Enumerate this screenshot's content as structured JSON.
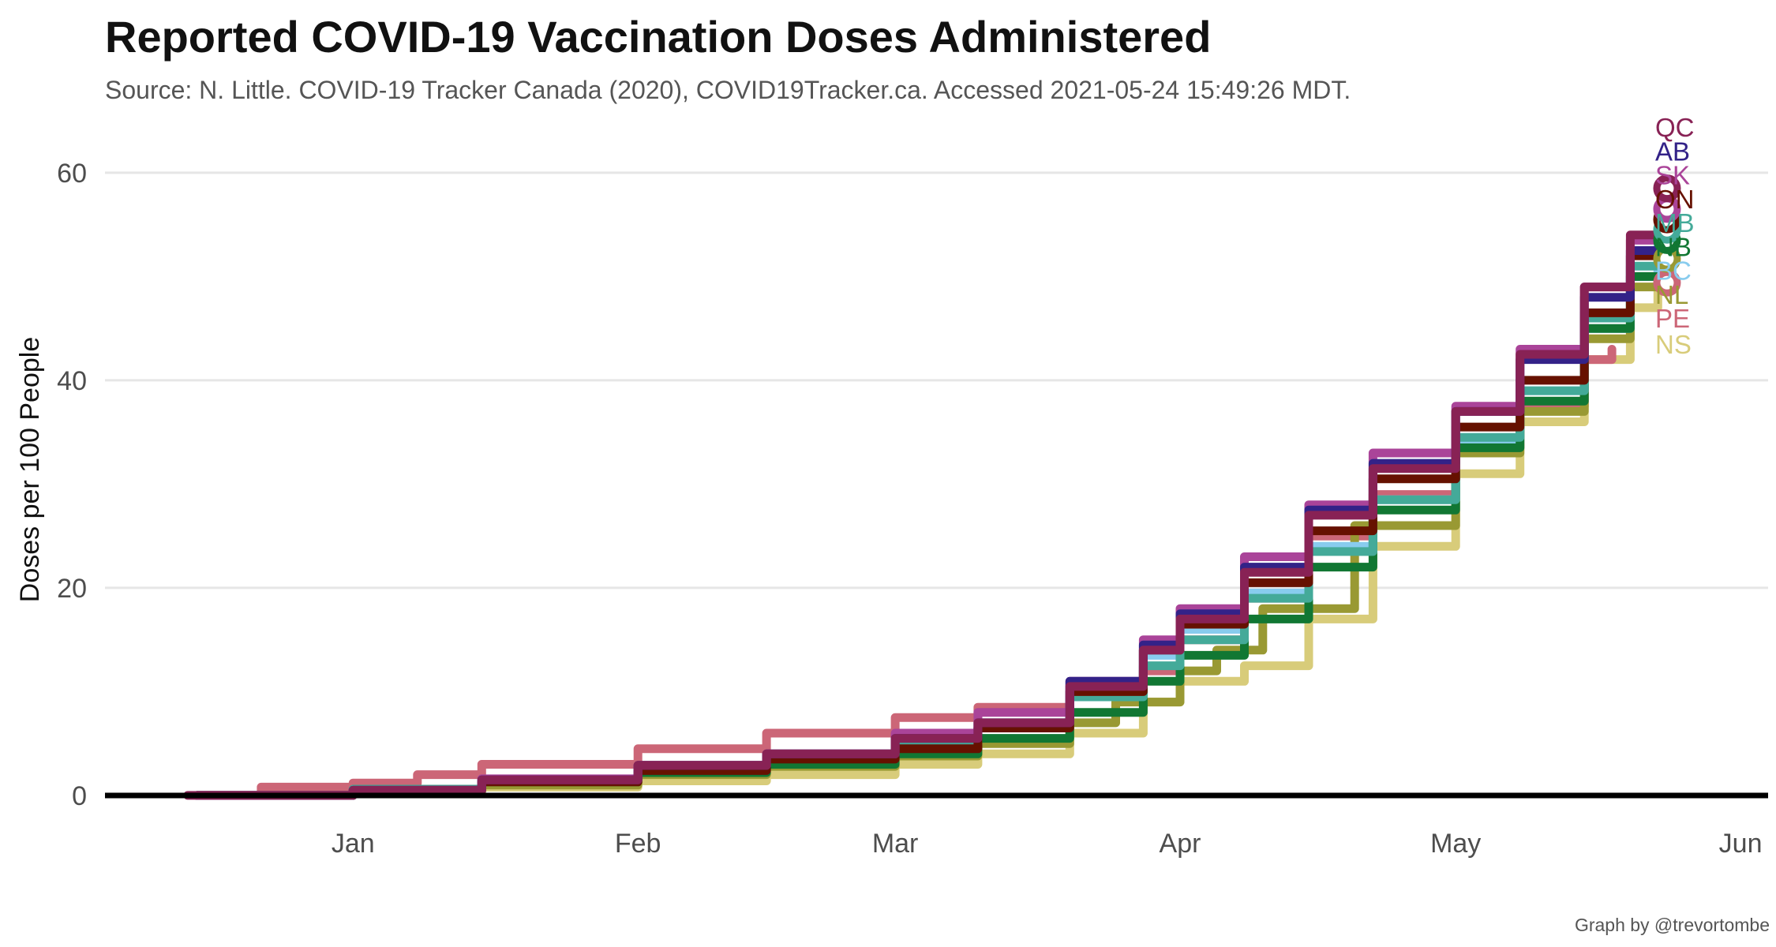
{
  "chart_data": {
    "type": "line",
    "title": "Reported COVID-19 Vaccination Doses Administered",
    "subtitle": "Source: N. Little. COVID-19 Tracker Canada (2020), COVID19Tracker.ca. Accessed 2021-05-24 15:49:26 MDT.",
    "caption": "Graph by @trevortombe",
    "ylabel": "Doses per 100 People",
    "xlabel": "",
    "x_range": [
      "2020-12-05",
      "2021-06-04"
    ],
    "ylim": [
      -7,
      66
    ],
    "y_ticks": [
      0,
      20,
      40,
      60
    ],
    "y_tick_labels": [
      "0",
      "20",
      "40",
      "60"
    ],
    "x_ticks": [
      "2021-01-01",
      "2021-02-01",
      "2021-03-01",
      "2021-04-01",
      "2021-05-01",
      "2021-06-01"
    ],
    "x_tick_labels": [
      "Jan",
      "Feb",
      "Mar",
      "Apr",
      "May",
      "Jun"
    ],
    "grid": "horizontal",
    "legend": "none",
    "zero_line": true,
    "series": [
      {
        "name": "NS",
        "color": "#D8CC7A",
        "end_label_value": 43.5,
        "points": [
          [
            "2020-12-15",
            0
          ],
          [
            "2021-01-01",
            0.4
          ],
          [
            "2021-01-15",
            0.8
          ],
          [
            "2021-02-01",
            1.4
          ],
          [
            "2021-02-15",
            2.0
          ],
          [
            "2021-03-01",
            3.0
          ],
          [
            "2021-03-10",
            4.0
          ],
          [
            "2021-03-20",
            6.0
          ],
          [
            "2021-03-28",
            9.0
          ],
          [
            "2021-04-01",
            11.0
          ],
          [
            "2021-04-08",
            12.5
          ],
          [
            "2021-04-15",
            17.0
          ],
          [
            "2021-04-22",
            24.0
          ],
          [
            "2021-05-01",
            31.0
          ],
          [
            "2021-05-08",
            36.0
          ],
          [
            "2021-05-15",
            42.0
          ],
          [
            "2021-05-20",
            47.0
          ],
          [
            "2021-05-23",
            50.0
          ]
        ],
        "end_point": null
      },
      {
        "name": "PE",
        "color": "#CC6677",
        "end_label_value": 46.0,
        "points": [
          [
            "2020-12-16",
            0
          ],
          [
            "2020-12-22",
            0.8
          ],
          [
            "2021-01-01",
            1.2
          ],
          [
            "2021-01-08",
            2.0
          ],
          [
            "2021-01-15",
            3.0
          ],
          [
            "2021-02-01",
            4.5
          ],
          [
            "2021-02-15",
            6.0
          ],
          [
            "2021-03-01",
            7.5
          ],
          [
            "2021-03-10",
            8.5
          ],
          [
            "2021-03-20",
            10.0
          ],
          [
            "2021-03-28",
            12.0
          ],
          [
            "2021-04-01",
            15.0
          ],
          [
            "2021-04-08",
            19.0
          ],
          [
            "2021-04-15",
            25.0
          ],
          [
            "2021-04-22",
            29.0
          ],
          [
            "2021-05-01",
            33.5
          ],
          [
            "2021-05-08",
            37.5
          ],
          [
            "2021-05-15",
            42.0
          ],
          [
            "2021-05-18",
            43.0
          ]
        ],
        "end_point": [
          "2021-05-24",
          49.4
        ]
      },
      {
        "name": "NL",
        "color": "#999933",
        "end_label_value": 48.3,
        "points": [
          [
            "2020-12-16",
            0
          ],
          [
            "2021-01-01",
            0.4
          ],
          [
            "2021-01-15",
            1.0
          ],
          [
            "2021-02-01",
            2.0
          ],
          [
            "2021-02-15",
            2.8
          ],
          [
            "2021-03-01",
            3.8
          ],
          [
            "2021-03-10",
            5.0
          ],
          [
            "2021-03-20",
            7.0
          ],
          [
            "2021-03-25",
            9.0
          ],
          [
            "2021-04-01",
            12.0
          ],
          [
            "2021-04-05",
            14.0
          ],
          [
            "2021-04-10",
            18.0
          ],
          [
            "2021-04-20",
            26.0
          ],
          [
            "2021-05-01",
            33.0
          ],
          [
            "2021-05-08",
            37.0
          ],
          [
            "2021-05-15",
            44.0
          ],
          [
            "2021-05-20",
            49.0
          ],
          [
            "2021-05-24",
            51.7
          ]
        ],
        "end_point": [
          "2021-05-24",
          51.7
        ]
      },
      {
        "name": "BC",
        "color": "#88CCEE",
        "end_label_value": 50.6,
        "points": [
          [
            "2020-12-15",
            0
          ],
          [
            "2021-01-01",
            0.6
          ],
          [
            "2021-01-15",
            1.5
          ],
          [
            "2021-02-01",
            2.7
          ],
          [
            "2021-02-15",
            3.6
          ],
          [
            "2021-03-01",
            5.5
          ],
          [
            "2021-03-10",
            7.0
          ],
          [
            "2021-03-20",
            10.0
          ],
          [
            "2021-03-28",
            13.5
          ],
          [
            "2021-04-01",
            16.0
          ],
          [
            "2021-04-08",
            19.5
          ],
          [
            "2021-04-15",
            24.0
          ],
          [
            "2021-04-22",
            28.5
          ],
          [
            "2021-05-01",
            34.0
          ],
          [
            "2021-05-08",
            39.0
          ],
          [
            "2021-05-15",
            45.0
          ],
          [
            "2021-05-20",
            50.0
          ],
          [
            "2021-05-23",
            53.0
          ]
        ],
        "end_point": null
      },
      {
        "name": "NB",
        "color": "#117733",
        "end_label_value": 52.9,
        "points": [
          [
            "2020-12-15",
            0
          ],
          [
            "2021-01-01",
            0.6
          ],
          [
            "2021-01-15",
            1.3
          ],
          [
            "2021-02-01",
            2.2
          ],
          [
            "2021-02-15",
            3.0
          ],
          [
            "2021-03-01",
            4.0
          ],
          [
            "2021-03-10",
            5.5
          ],
          [
            "2021-03-20",
            8.0
          ],
          [
            "2021-03-28",
            11.0
          ],
          [
            "2021-04-01",
            13.5
          ],
          [
            "2021-04-08",
            17.0
          ],
          [
            "2021-04-15",
            22.0
          ],
          [
            "2021-04-22",
            27.5
          ],
          [
            "2021-05-01",
            33.5
          ],
          [
            "2021-05-08",
            38.0
          ],
          [
            "2021-05-15",
            45.0
          ],
          [
            "2021-05-20",
            50.0
          ],
          [
            "2021-05-24",
            53.5
          ]
        ],
        "end_point": [
          "2021-05-24",
          53.5
        ]
      },
      {
        "name": "MB",
        "color": "#44AA99",
        "end_label_value": 55.2,
        "points": [
          [
            "2020-12-15",
            0
          ],
          [
            "2021-01-01",
            0.6
          ],
          [
            "2021-01-15",
            1.5
          ],
          [
            "2021-02-01",
            2.8
          ],
          [
            "2021-02-15",
            3.7
          ],
          [
            "2021-03-01",
            5.0
          ],
          [
            "2021-03-10",
            6.5
          ],
          [
            "2021-03-20",
            9.5
          ],
          [
            "2021-03-28",
            12.5
          ],
          [
            "2021-04-01",
            15.0
          ],
          [
            "2021-04-08",
            19.0
          ],
          [
            "2021-04-15",
            23.5
          ],
          [
            "2021-04-22",
            28.5
          ],
          [
            "2021-05-01",
            34.5
          ],
          [
            "2021-05-08",
            39.0
          ],
          [
            "2021-05-15",
            46.0
          ],
          [
            "2021-05-20",
            51.0
          ],
          [
            "2021-05-24",
            54.5
          ]
        ],
        "end_point": [
          "2021-05-24",
          54.5
        ]
      },
      {
        "name": "ON",
        "color": "#661100",
        "end_label_value": 57.5,
        "points": [
          [
            "2020-12-15",
            0
          ],
          [
            "2021-01-01",
            0.5
          ],
          [
            "2021-01-15",
            1.3
          ],
          [
            "2021-02-01",
            2.4
          ],
          [
            "2021-02-15",
            3.5
          ],
          [
            "2021-03-01",
            4.5
          ],
          [
            "2021-03-10",
            6.5
          ],
          [
            "2021-03-20",
            10.0
          ],
          [
            "2021-03-28",
            14.0
          ],
          [
            "2021-04-01",
            16.5
          ],
          [
            "2021-04-08",
            20.5
          ],
          [
            "2021-04-15",
            25.5
          ],
          [
            "2021-04-22",
            30.5
          ],
          [
            "2021-05-01",
            35.5
          ],
          [
            "2021-05-08",
            40.0
          ],
          [
            "2021-05-15",
            46.5
          ],
          [
            "2021-05-20",
            52.0
          ],
          [
            "2021-05-24",
            55.5
          ]
        ],
        "end_point": [
          "2021-05-24",
          55.5
        ]
      },
      {
        "name": "SK",
        "color": "#AA4499",
        "end_label_value": 59.8,
        "points": [
          [
            "2020-12-15",
            0
          ],
          [
            "2021-01-01",
            0.5
          ],
          [
            "2021-01-15",
            1.6
          ],
          [
            "2021-02-01",
            2.9
          ],
          [
            "2021-02-15",
            4.0
          ],
          [
            "2021-03-01",
            6.0
          ],
          [
            "2021-03-10",
            8.0
          ],
          [
            "2021-03-20",
            11.0
          ],
          [
            "2021-03-28",
            15.0
          ],
          [
            "2021-04-01",
            18.0
          ],
          [
            "2021-04-08",
            23.0
          ],
          [
            "2021-04-15",
            28.0
          ],
          [
            "2021-04-22",
            33.0
          ],
          [
            "2021-05-01",
            37.5
          ],
          [
            "2021-05-08",
            43.0
          ],
          [
            "2021-05-15",
            49.0
          ],
          [
            "2021-05-20",
            53.5
          ],
          [
            "2021-05-24",
            56.5
          ]
        ],
        "end_point": [
          "2021-05-24",
          56.5
        ]
      },
      {
        "name": "AB",
        "color": "#332288",
        "end_label_value": 62.1,
        "points": [
          [
            "2020-12-15",
            0
          ],
          [
            "2021-01-01",
            0.5
          ],
          [
            "2021-01-15",
            1.5
          ],
          [
            "2021-02-01",
            2.9
          ],
          [
            "2021-02-15",
            4.0
          ],
          [
            "2021-03-01",
            5.5
          ],
          [
            "2021-03-10",
            7.0
          ],
          [
            "2021-03-20",
            11.0
          ],
          [
            "2021-03-28",
            14.5
          ],
          [
            "2021-04-01",
            17.5
          ],
          [
            "2021-04-08",
            22.0
          ],
          [
            "2021-04-15",
            27.5
          ],
          [
            "2021-04-22",
            32.0
          ],
          [
            "2021-05-01",
            37.0
          ],
          [
            "2021-05-08",
            42.0
          ],
          [
            "2021-05-15",
            48.0
          ],
          [
            "2021-05-20",
            52.5
          ],
          [
            "2021-05-24",
            56.0
          ]
        ],
        "end_point": null
      },
      {
        "name": "QC",
        "color": "#882255",
        "end_label_value": 64.4,
        "points": [
          [
            "2020-12-14",
            0
          ],
          [
            "2021-01-01",
            0.5
          ],
          [
            "2021-01-15",
            1.5
          ],
          [
            "2021-02-01",
            2.9
          ],
          [
            "2021-02-15",
            4.0
          ],
          [
            "2021-03-01",
            5.5
          ],
          [
            "2021-03-10",
            7.0
          ],
          [
            "2021-03-20",
            10.5
          ],
          [
            "2021-03-28",
            14.0
          ],
          [
            "2021-04-01",
            17.0
          ],
          [
            "2021-04-08",
            21.5
          ],
          [
            "2021-04-15",
            27.0
          ],
          [
            "2021-04-22",
            31.5
          ],
          [
            "2021-05-01",
            37.0
          ],
          [
            "2021-05-08",
            42.5
          ],
          [
            "2021-05-15",
            49.0
          ],
          [
            "2021-05-20",
            54.0
          ],
          [
            "2021-05-24",
            58.5
          ]
        ],
        "end_point": [
          "2021-05-24",
          58.5
        ]
      }
    ]
  }
}
